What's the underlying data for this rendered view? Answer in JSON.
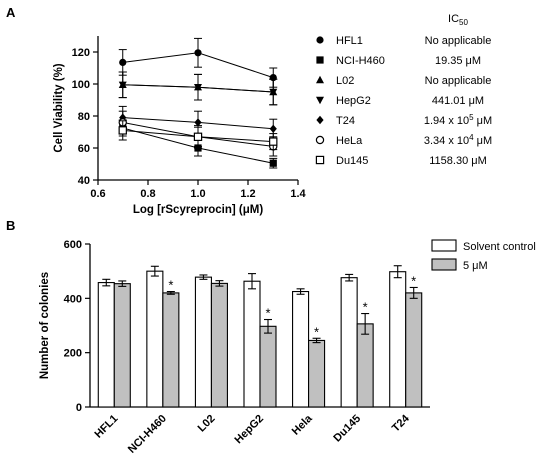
{
  "panels": {
    "a": "A",
    "b": "B"
  },
  "chart_data": [
    {
      "type": "line",
      "panel": "A",
      "xlabel": "Log [rScyreprocin] (μM)",
      "ylabel": "Cell Viability (%)",
      "xlim": [
        0.6,
        1.4
      ],
      "ylim": [
        40,
        130
      ],
      "xticks": [
        "0.6",
        "0.8",
        "1.0",
        "1.2",
        "1.4"
      ],
      "yticks": [
        "40",
        "60",
        "80",
        "100",
        "120"
      ],
      "x": [
        0.699,
        1.0,
        1.301
      ],
      "legend_header": "IC50",
      "series": [
        {
          "name": "HFL1",
          "marker": "circle-filled",
          "values": [
            113.5,
            119.5,
            104
          ],
          "errors": [
            8,
            9,
            6
          ],
          "ic50": "No applicable"
        },
        {
          "name": "NCI-H460",
          "marker": "square-filled",
          "values": [
            72.5,
            60,
            50.5
          ],
          "errors": [
            5,
            5,
            3
          ],
          "ic50": "19.35 μM"
        },
        {
          "name": "L02",
          "marker": "triangle-up-filled",
          "values": [
            99.5,
            98,
            95
          ],
          "errors": [
            8,
            8,
            8
          ],
          "ic50": "No applicable"
        },
        {
          "name": "HepG2",
          "marker": "triangle-down-filled",
          "values": [
            99.5,
            98,
            95
          ],
          "errors": [
            8,
            8,
            8
          ],
          "ic50": "441.01 μM"
        },
        {
          "name": "T24",
          "marker": "diamond-filled",
          "values": [
            79,
            76,
            72
          ],
          "errors": [
            7,
            7,
            6
          ],
          "ic50": "1.94 x 10^5 μM"
        },
        {
          "name": "HeLa",
          "marker": "circle-open",
          "values": [
            76,
            67,
            61
          ],
          "errors": [
            7,
            7,
            6
          ],
          "ic50": "3.34 x 10^4 μM"
        },
        {
          "name": "Du145",
          "marker": "square-open",
          "values": [
            71,
            67,
            64
          ],
          "errors": [
            6,
            6,
            5
          ],
          "ic50": "1158.30 μM"
        }
      ]
    },
    {
      "type": "bar",
      "panel": "B",
      "ylabel": "Number of colonies",
      "ylim": [
        0,
        600
      ],
      "yticks": [
        "0",
        "200",
        "400",
        "600"
      ],
      "categories": [
        "HFL1",
        "NCI-H460",
        "L02",
        "HepG2",
        "Hela",
        "Du145",
        "T24"
      ],
      "series": [
        {
          "name": "Solvent control",
          "color": "#ffffff",
          "values": [
            458,
            500,
            478,
            463,
            425,
            476,
            498
          ],
          "errors": [
            12,
            18,
            8,
            28,
            10,
            12,
            22
          ]
        },
        {
          "name": "5 μM",
          "color": "#c0c0c0",
          "values": [
            454,
            420,
            455,
            297,
            245,
            306,
            420
          ],
          "errors": [
            10,
            5,
            10,
            25,
            8,
            38,
            20
          ]
        }
      ],
      "significance_marker": "*",
      "significant": [
        false,
        true,
        false,
        true,
        true,
        true,
        true
      ]
    }
  ]
}
